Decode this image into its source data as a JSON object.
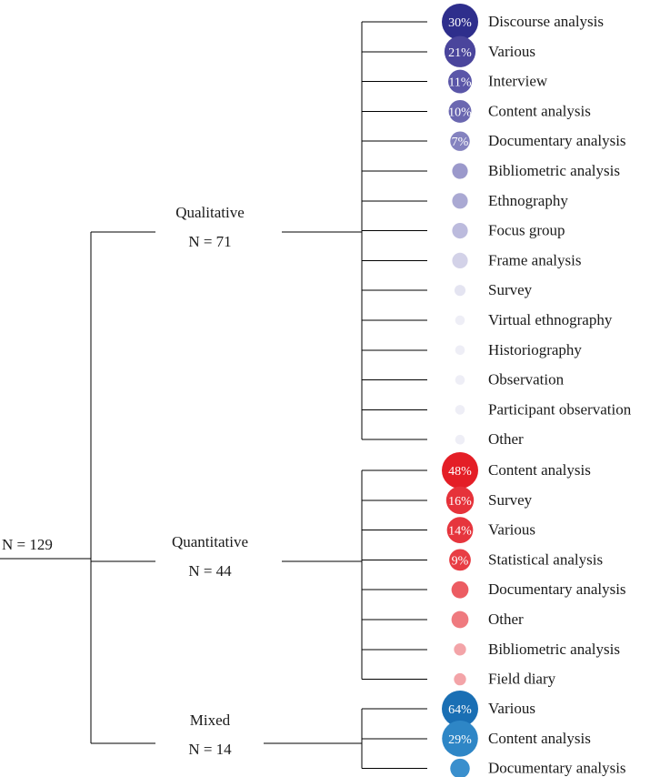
{
  "root": {
    "label": "N = 129"
  },
  "groups": [
    {
      "name": "Qualitative",
      "n_label": "N = 71",
      "color": "#2e2e8c",
      "leaves": [
        {
          "label": "Discourse analysis",
          "pct": 30,
          "pct_label": "30%",
          "color": "#2e2e8c"
        },
        {
          "label": "Various",
          "pct": 21,
          "pct_label": "21%",
          "color": "#4a459c"
        },
        {
          "label": "Interview",
          "pct": 11,
          "pct_label": "11%",
          "color": "#5a56a8"
        },
        {
          "label": "Content analysis",
          "pct": 10,
          "pct_label": "10%",
          "color": "#6a67b0"
        },
        {
          "label": "Documentary analysis",
          "pct": 7,
          "pct_label": "7%",
          "color": "#8482bf"
        },
        {
          "label": "Bibliometric analysis",
          "pct": 4,
          "pct_label": "",
          "color": "#9b99cb"
        },
        {
          "label": "Ethnography",
          "pct": 4,
          "pct_label": "",
          "color": "#aaa9d3"
        },
        {
          "label": "Focus group",
          "pct": 4,
          "pct_label": "",
          "color": "#bcbbdd"
        },
        {
          "label": "Frame analysis",
          "pct": 4,
          "pct_label": "",
          "color": "#d3d2e8"
        },
        {
          "label": "Survey",
          "pct": 1.5,
          "pct_label": "",
          "color": "#e4e4f1"
        },
        {
          "label": "Virtual ethnography",
          "pct": 1,
          "pct_label": "",
          "color": "#eeeef6"
        },
        {
          "label": "Historiography",
          "pct": 1,
          "pct_label": "",
          "color": "#eeeef6"
        },
        {
          "label": "Observation",
          "pct": 1,
          "pct_label": "",
          "color": "#eeeef6"
        },
        {
          "label": "Participant observation",
          "pct": 1,
          "pct_label": "",
          "color": "#eeeef6"
        },
        {
          "label": "Other",
          "pct": 1,
          "pct_label": "",
          "color": "#eeeef6"
        }
      ]
    },
    {
      "name": "Quantitative",
      "n_label": "N = 44",
      "color": "#e8232d",
      "leaves": [
        {
          "label": "Content analysis",
          "pct": 48,
          "pct_label": "48%",
          "color": "#e41e26"
        },
        {
          "label": "Survey",
          "pct": 16,
          "pct_label": "16%",
          "color": "#e6323a"
        },
        {
          "label": "Various",
          "pct": 14,
          "pct_label": "14%",
          "color": "#e6353d"
        },
        {
          "label": "Statistical analysis",
          "pct": 9,
          "pct_label": "9%",
          "color": "#e83d44"
        },
        {
          "label": "Documentary analysis",
          "pct": 5,
          "pct_label": "",
          "color": "#ec5c62"
        },
        {
          "label": "Other",
          "pct": 5,
          "pct_label": "",
          "color": "#ef7a7f"
        },
        {
          "label": "Bibliometric analysis",
          "pct": 2,
          "pct_label": "",
          "color": "#f3a4a8"
        },
        {
          "label": "Field diary",
          "pct": 2,
          "pct_label": "",
          "color": "#f3a4a8"
        }
      ]
    },
    {
      "name": "Mixed",
      "n_label": "N = 14",
      "color": "#1a6fb4",
      "leaves": [
        {
          "label": "Various",
          "pct": 64,
          "pct_label": "64%",
          "color": "#1a6fb4"
        },
        {
          "label": "Content analysis",
          "pct": 29,
          "pct_label": "29%",
          "color": "#2e86c6"
        },
        {
          "label": "Documentary analysis",
          "pct": 7,
          "pct_label": "",
          "color": "#3a8fcd"
        }
      ]
    }
  ]
}
